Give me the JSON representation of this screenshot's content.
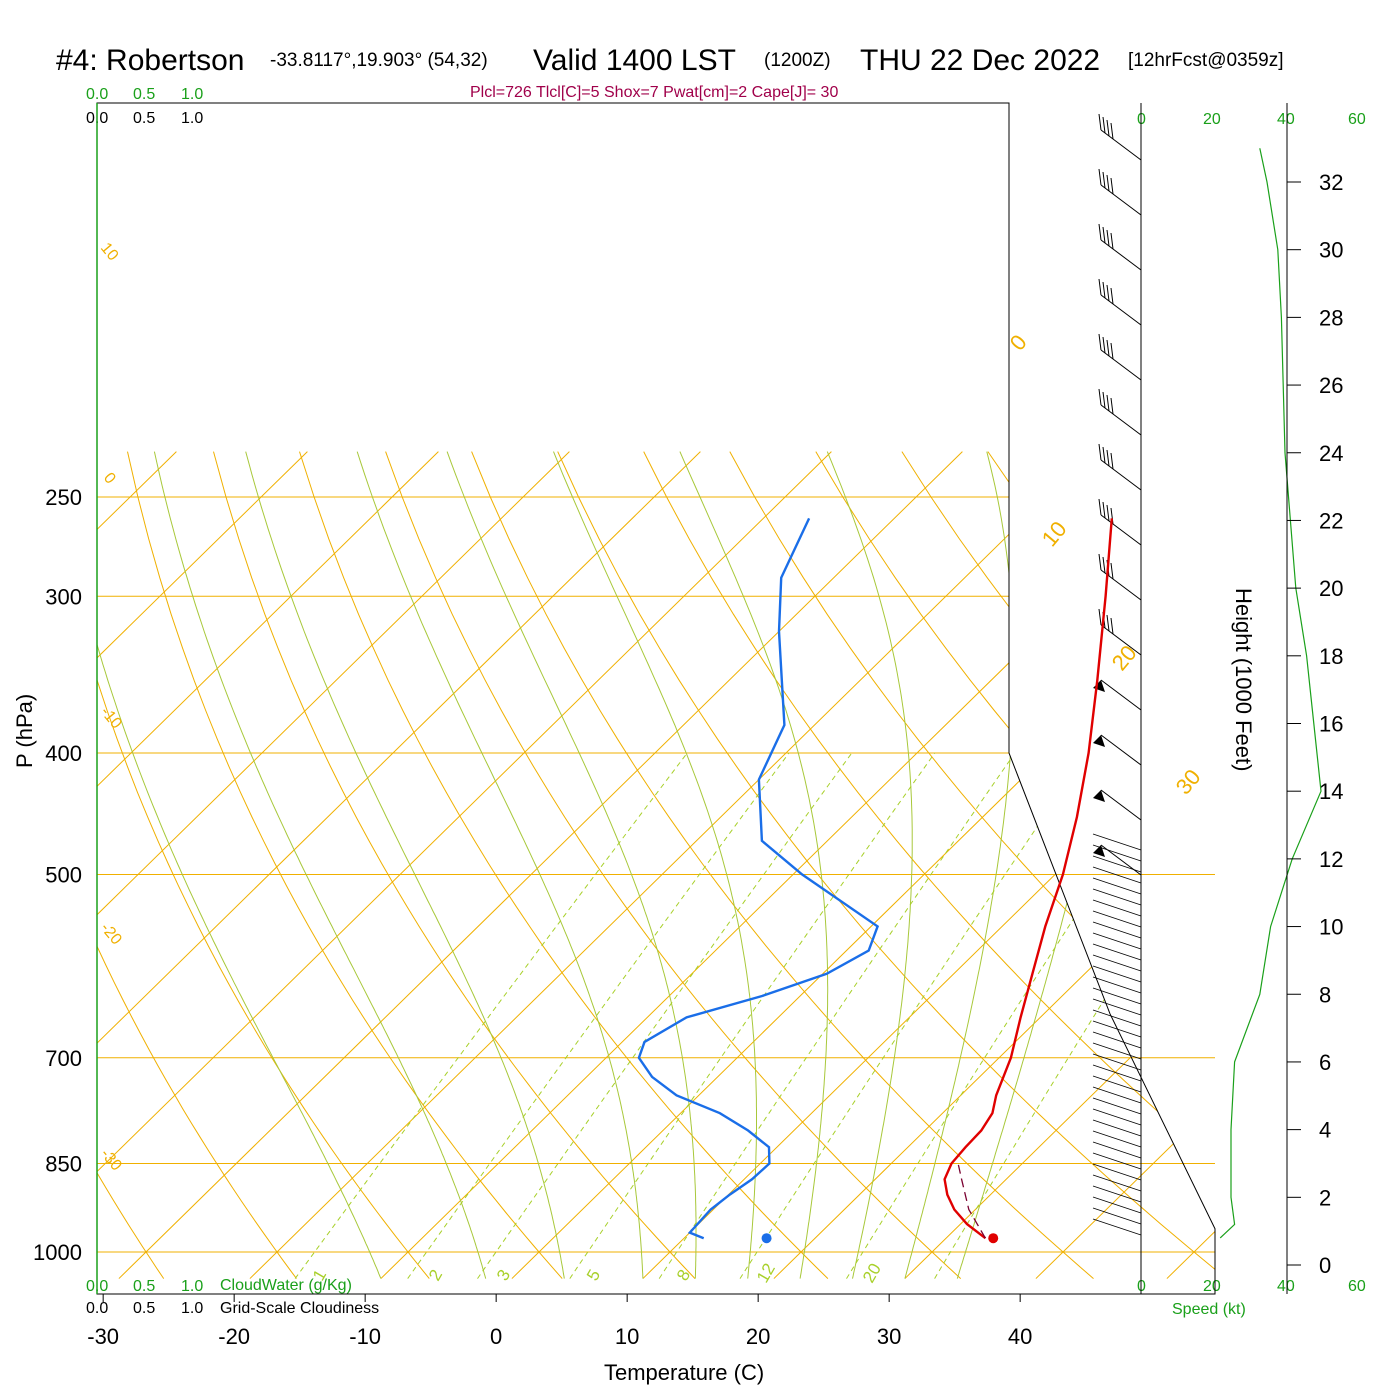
{
  "title": {
    "station": "#4: Robertson",
    "coords": "-33.8117°,19.903° (54,32)",
    "valid": "Valid 1400 LST",
    "zulu": "(1200Z)",
    "date": "THU 22 Dec 2022",
    "forecast": "[12hrFcst@0359z]"
  },
  "stats_line": "Plcl=726 Tlcl[C]=5 Shox=7 Pwat[cm]=2 Cape[J]= 30",
  "colors": {
    "temperature": "#e00000",
    "dewpoint": "#1a6ee8",
    "isotherm": "#f0b000",
    "dry_adiabat": "#f0b000",
    "moist_adiabat": "#a8c83a",
    "mixing_ratio": "#a8d02a",
    "speed_profile": "#1aa01a",
    "stats": "#a0004a"
  },
  "top_scales": {
    "cloud_water_ticks": [
      "0.0",
      "0.5",
      "1.0"
    ],
    "cloudiness_ticks": [
      "0.0",
      "0.5",
      "1.0"
    ]
  },
  "bottom_scales": {
    "cloud_water_ticks": [
      "0.0",
      "0.5",
      "1.0"
    ],
    "cloud_water_label": "CloudWater (g/Kg)",
    "cloudiness_ticks": [
      "0.0",
      "0.5",
      "1.0"
    ],
    "cloudiness_label": "Grid-Scale Cloudiness"
  },
  "speed_scale": {
    "ticks": [
      "0",
      "20",
      "40",
      "60"
    ],
    "label": "Speed (kt)"
  },
  "isotherm_labels": [
    "10",
    "0",
    "-10",
    "-20",
    "-30"
  ],
  "isotherm_labels_right": [
    "0",
    "10",
    "20",
    "30"
  ],
  "mixing_ratio_labels": [
    "1",
    "2",
    "3",
    "5",
    "8",
    "12",
    "20"
  ],
  "chart_data": {
    "type": "line",
    "subtype": "skew-T log-P sounding",
    "xlabel": "Temperature (C)",
    "ylabel": "P (hPa)",
    "y2label": "Height (1000 Feet)",
    "x_ticks": [
      -30,
      -20,
      -10,
      0,
      10,
      20,
      30,
      40
    ],
    "y_ticks": [
      250,
      300,
      400,
      500,
      700,
      850,
      1000
    ],
    "y2_ticks": [
      0,
      2,
      4,
      6,
      8,
      10,
      12,
      14,
      16,
      18,
      20,
      22,
      24,
      26,
      28,
      30,
      32
    ],
    "y_scale": "log",
    "series": [
      {
        "name": "Temperature",
        "points": [
          [
            975,
            33.0
          ],
          [
            950,
            30.5
          ],
          [
            925,
            28.4
          ],
          [
            900,
            26.7
          ],
          [
            875,
            25.3
          ],
          [
            850,
            24.6
          ],
          [
            825,
            24.4
          ],
          [
            800,
            24.3
          ],
          [
            775,
            23.8
          ],
          [
            750,
            22.7
          ],
          [
            700,
            20.9
          ],
          [
            650,
            18.5
          ],
          [
            600,
            16.0
          ],
          [
            550,
            13.3
          ],
          [
            500,
            10.6
          ],
          [
            450,
            7.2
          ],
          [
            400,
            3.1
          ],
          [
            350,
            -1.9
          ],
          [
            300,
            -7.8
          ],
          [
            260,
            -13.4
          ]
        ]
      },
      {
        "name": "Dewpoint",
        "points": [
          [
            975,
            11.5
          ],
          [
            965,
            10.0
          ],
          [
            925,
            9.8
          ],
          [
            900,
            10.1
          ],
          [
            875,
            10.6
          ],
          [
            850,
            10.7
          ],
          [
            825,
            9.4
          ],
          [
            800,
            6.5
          ],
          [
            775,
            3.0
          ],
          [
            750,
            -1.7
          ],
          [
            725,
            -5.0
          ],
          [
            700,
            -7.5
          ],
          [
            680,
            -8.3
          ],
          [
            650,
            -7.0
          ],
          [
            625,
            -2.9
          ],
          [
            600,
            0.3
          ],
          [
            575,
            1.7
          ],
          [
            550,
            0.5
          ],
          [
            500,
            -9.3
          ],
          [
            470,
            -15.0
          ],
          [
            420,
            -20.0
          ],
          [
            380,
            -22.3
          ],
          [
            320,
            -30.0
          ],
          [
            290,
            -34.0
          ],
          [
            260,
            -36.5
          ]
        ]
      },
      {
        "name": "Parcel",
        "points": [
          [
            975,
            33.0
          ],
          [
            925,
            29.5
          ],
          [
            875,
            26.6
          ],
          [
            850,
            25.1
          ]
        ]
      }
    ],
    "surface_temperature_marker": 33.6,
    "surface_dewpoint_marker": 16.3,
    "surface_marker_pressure": 975,
    "wind_speed_profile": {
      "x_label": "Speed (kt)",
      "x_range": [
        0,
        60
      ],
      "points": [
        [
          0.8,
          22
        ],
        [
          1.2,
          26
        ],
        [
          2,
          25
        ],
        [
          4,
          25
        ],
        [
          6,
          26
        ],
        [
          8,
          33
        ],
        [
          10,
          36
        ],
        [
          12,
          42
        ],
        [
          14,
          50
        ],
        [
          16,
          48
        ],
        [
          18,
          46
        ],
        [
          20,
          43
        ],
        [
          24,
          40
        ],
        [
          28,
          39
        ],
        [
          30,
          38
        ],
        [
          32,
          35
        ],
        [
          33,
          33
        ]
      ]
    },
    "grid": true
  }
}
